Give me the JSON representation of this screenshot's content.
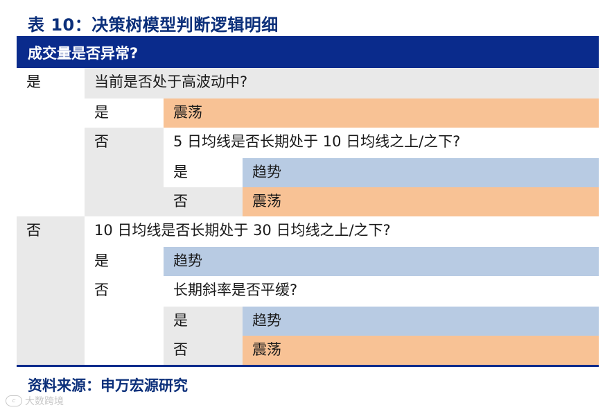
{
  "title": "表 10：决策树模型判断逻辑明细",
  "header": "成交量是否异常?",
  "tree": {
    "yes_label": "是",
    "no_label": "否",
    "q_volatility": "当前是否处于高波动中?",
    "q_ma5_vs_ma10": "5 日均线是否长期处于 10 日均线之上/之下?",
    "q_ma10_vs_ma30": "10 日均线是否长期处于 30 日均线之上/之下?",
    "q_slope": "长期斜率是否平缓?",
    "result_range": "震荡",
    "result_trend": "趋势"
  },
  "source": "资料来源：申万宏源研究",
  "watermark": "大数跨境",
  "colors": {
    "navy": "#0a2b8c",
    "gray": "#e9e9e9",
    "orange": "#f8c295",
    "blue": "#b8cbe3"
  }
}
